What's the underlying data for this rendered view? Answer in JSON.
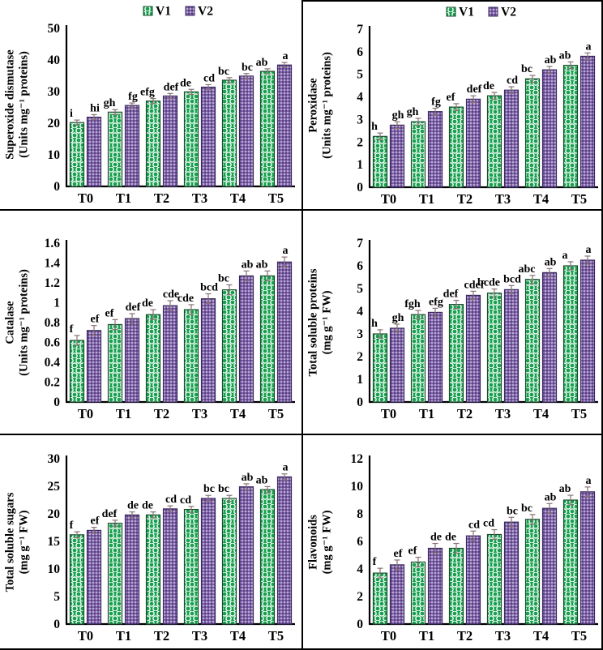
{
  "figure": {
    "legend": {
      "items": [
        "V1",
        "V2"
      ]
    },
    "categories": [
      "T0",
      "T1",
      "T2",
      "T3",
      "T4",
      "T5"
    ]
  },
  "colors": {
    "v1_fill": "#17a14f",
    "v1_stroke": "#1b4d2e",
    "v2_fill": "#8064aa",
    "v2_dot_dark": "#40276b",
    "v2_stroke": "#3a2a5e",
    "pattern_dot_light": "#ffffff",
    "error_bar": "#8a7272",
    "axis": "#000000",
    "text": "#000000"
  },
  "chart_data": [
    {
      "id": "superoxide-dismutase",
      "type": "bar",
      "title_lines": [
        "Superoxide dismutase",
        "(Units mg⁻¹ proteins)"
      ],
      "ylim": [
        0,
        50
      ],
      "ytick_values": [
        0,
        10,
        20,
        30,
        40,
        50
      ],
      "ytick_labels": [
        "0",
        "10",
        "20",
        "30",
        "40",
        "50"
      ],
      "categories": [
        "T0",
        "T1",
        "T2",
        "T3",
        "T4",
        "T5"
      ],
      "series": [
        {
          "name": "V1",
          "values": [
            20.2,
            23.5,
            27.0,
            29.9,
            33.6,
            36.4
          ],
          "letters": [
            "i",
            "gh",
            "efg",
            "de",
            "bc",
            "ab"
          ]
        },
        {
          "name": "V2",
          "values": [
            21.9,
            25.6,
            28.6,
            31.4,
            34.9,
            38.4
          ],
          "letters": [
            "hi",
            "fg",
            "def",
            "cd",
            "bc",
            "a"
          ]
        }
      ],
      "error": 0.8,
      "has_legend": true,
      "legend_labels": [
        "V1",
        "V2"
      ]
    },
    {
      "id": "peroxidase",
      "type": "bar",
      "title_lines": [
        "Peroxidase",
        "(Units mg⁻¹ proteins)"
      ],
      "ylim": [
        0,
        7
      ],
      "ytick_values": [
        0,
        1,
        2,
        3,
        4,
        5,
        6,
        7
      ],
      "ytick_labels": [
        "0",
        "1",
        "2",
        "3",
        "4",
        "5",
        "6",
        "7"
      ],
      "categories": [
        "T0",
        "T1",
        "T2",
        "T3",
        "T4",
        "T5"
      ],
      "series": [
        {
          "name": "V1",
          "values": [
            2.25,
            2.9,
            3.55,
            4.05,
            4.8,
            5.4
          ],
          "letters": [
            "h",
            "gh",
            "ef",
            "de",
            "bc",
            "ab"
          ]
        },
        {
          "name": "V2",
          "values": [
            2.75,
            3.35,
            3.9,
            4.3,
            5.2,
            5.8
          ],
          "letters": [
            "gh",
            "fg",
            "def",
            "cd",
            "ab",
            "a"
          ]
        }
      ],
      "error": 0.15,
      "has_legend": true,
      "legend_labels": [
        "V1",
        "V2"
      ]
    },
    {
      "id": "catalase",
      "type": "bar",
      "title_lines": [
        "Catalase",
        "(Units mg⁻¹ proteins)"
      ],
      "ylim": [
        0,
        1.6
      ],
      "ytick_values": [
        0,
        0.2,
        0.4,
        0.6,
        0.8,
        1,
        1.2,
        1.4,
        1.6
      ],
      "ytick_labels": [
        "0",
        "0.2",
        "0.4",
        "0.6",
        "0.8",
        "1",
        "1.2",
        "1.4",
        "1.6"
      ],
      "categories": [
        "T0",
        "T1",
        "T2",
        "T3",
        "T4",
        "T5"
      ],
      "series": [
        {
          "name": "V1",
          "values": [
            0.62,
            0.78,
            0.88,
            0.93,
            1.13,
            1.27
          ],
          "letters": [
            "f",
            "ef",
            "de",
            "cde",
            "bc",
            "ab"
          ]
        },
        {
          "name": "V2",
          "values": [
            0.72,
            0.84,
            0.97,
            1.04,
            1.27,
            1.41
          ],
          "letters": [
            "ef",
            "def",
            "cde",
            "bcd",
            "ab",
            "a"
          ]
        }
      ],
      "error": 0.05,
      "has_legend": false,
      "legend_labels": [
        "V1",
        "V2"
      ]
    },
    {
      "id": "total-soluble-proteins",
      "type": "bar",
      "title_lines": [
        "Total soluble proteins",
        "(mg g⁻¹ FW)"
      ],
      "ylim": [
        0,
        7
      ],
      "ytick_values": [
        0,
        1,
        2,
        3,
        4,
        5,
        6,
        7
      ],
      "ytick_labels": [
        "0",
        "1",
        "2",
        "3",
        "4",
        "5",
        "6",
        "7"
      ],
      "categories": [
        "T0",
        "T1",
        "T2",
        "T3",
        "T4",
        "T5"
      ],
      "series": [
        {
          "name": "V1",
          "values": [
            3.0,
            3.85,
            4.3,
            4.8,
            5.4,
            6.0
          ],
          "letters": [
            "h",
            "fgh",
            "def",
            "bcde",
            "abc",
            "a"
          ]
        },
        {
          "name": "V2",
          "values": [
            3.25,
            3.95,
            4.7,
            4.95,
            5.7,
            6.25
          ],
          "letters": [
            "gh",
            "efg",
            "cdef",
            "bcd",
            "ab",
            "a"
          ]
        }
      ],
      "error": 0.18,
      "has_legend": false,
      "legend_labels": [
        "V1",
        "V2"
      ]
    },
    {
      "id": "total-soluble-sugars",
      "type": "bar",
      "title_lines": [
        "Total soluble sugars",
        "(mg g⁻¹ FW)"
      ],
      "ylim": [
        0,
        30
      ],
      "ytick_values": [
        0,
        5,
        10,
        15,
        20,
        25,
        30
      ],
      "ytick_labels": [
        "0",
        "5",
        "10",
        "15",
        "20",
        "25",
        "30"
      ],
      "categories": [
        "T0",
        "T1",
        "T2",
        "T3",
        "T4",
        "T5"
      ],
      "series": [
        {
          "name": "V1",
          "values": [
            16.2,
            18.3,
            19.8,
            20.8,
            22.8,
            24.4
          ],
          "letters": [
            "f",
            "def",
            "de",
            "cd",
            "bc",
            "ab"
          ]
        },
        {
          "name": "V2",
          "values": [
            17.0,
            19.8,
            20.9,
            22.8,
            24.9,
            26.7
          ],
          "letters": [
            "ef",
            "de",
            "cd",
            "bc",
            "ab",
            "a"
          ]
        }
      ],
      "error": 0.55,
      "has_legend": false,
      "legend_labels": [
        "V1",
        "V2"
      ]
    },
    {
      "id": "flavonoids",
      "type": "bar",
      "title_lines": [
        "Flavonoids",
        "(mg g⁻¹ FW)"
      ],
      "ylim": [
        0,
        12
      ],
      "ytick_values": [
        0,
        2,
        4,
        6,
        8,
        10,
        12
      ],
      "ytick_labels": [
        "0",
        "2",
        "4",
        "6",
        "8",
        "10",
        "12"
      ],
      "categories": [
        "T0",
        "T1",
        "T2",
        "T3",
        "T4",
        "T5"
      ],
      "series": [
        {
          "name": "V1",
          "values": [
            3.7,
            4.5,
            5.5,
            6.5,
            7.6,
            9.0
          ],
          "letters": [
            "f",
            "ef",
            "de",
            "cd",
            "bc",
            "ab"
          ]
        },
        {
          "name": "V2",
          "values": [
            4.3,
            5.5,
            6.4,
            7.4,
            8.4,
            9.6
          ],
          "letters": [
            "ef",
            "de",
            "cd",
            "bc",
            "ab",
            "a"
          ]
        }
      ],
      "error": 0.35,
      "has_legend": false,
      "legend_labels": [
        "V1",
        "V2"
      ]
    }
  ]
}
